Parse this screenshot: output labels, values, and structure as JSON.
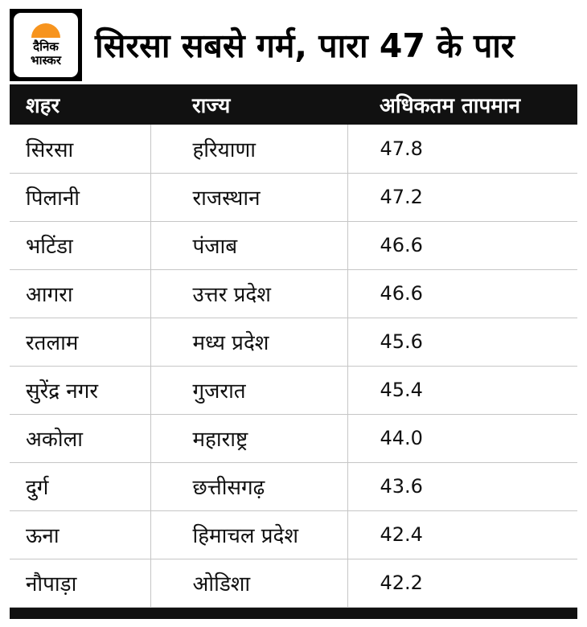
{
  "header": {
    "title": "सिरसा सबसे गर्म, पारा 47 के पार",
    "logo": {
      "text": "दैनिक\nभास्कर",
      "sun_color": "#f7941e",
      "frame_color": "#000000"
    }
  },
  "colors": {
    "header_row_bg": "#111111",
    "header_row_text": "#ffffff",
    "grid_line": "#c6c6c6",
    "accent_orange": "#f7941e"
  },
  "chart_data": {
    "type": "table",
    "title": "सिरसा सबसे गर्म, पारा 47 के पार",
    "columns": [
      "शहर",
      "राज्य",
      "अधिकतम तापमान"
    ],
    "rows": [
      {
        "city": "सिरसा",
        "state": "हरियाणा",
        "temp": "47.8"
      },
      {
        "city": "पिलानी",
        "state": "राजस्थान",
        "temp": "47.2"
      },
      {
        "city": "भटिंडा",
        "state": "पंजाब",
        "temp": "46.6"
      },
      {
        "city": "आगरा",
        "state": "उत्तर प्रदेश",
        "temp": "46.6"
      },
      {
        "city": "रतलाम",
        "state": "मध्य प्रदेश",
        "temp": "45.6"
      },
      {
        "city": "सुरेंद्र नगर",
        "state": "गुजरात",
        "temp": "45.4"
      },
      {
        "city": "अकोला",
        "state": "महाराष्ट्र",
        "temp": "44.0"
      },
      {
        "city": "दुर्ग",
        "state": "छत्तीसगढ़",
        "temp": "43.6"
      },
      {
        "city": "ऊना",
        "state": "हिमाचल प्रदेश",
        "temp": "42.4"
      },
      {
        "city": "नौपाड़ा",
        "state": "ओडिशा",
        "temp": "42.2"
      }
    ]
  }
}
